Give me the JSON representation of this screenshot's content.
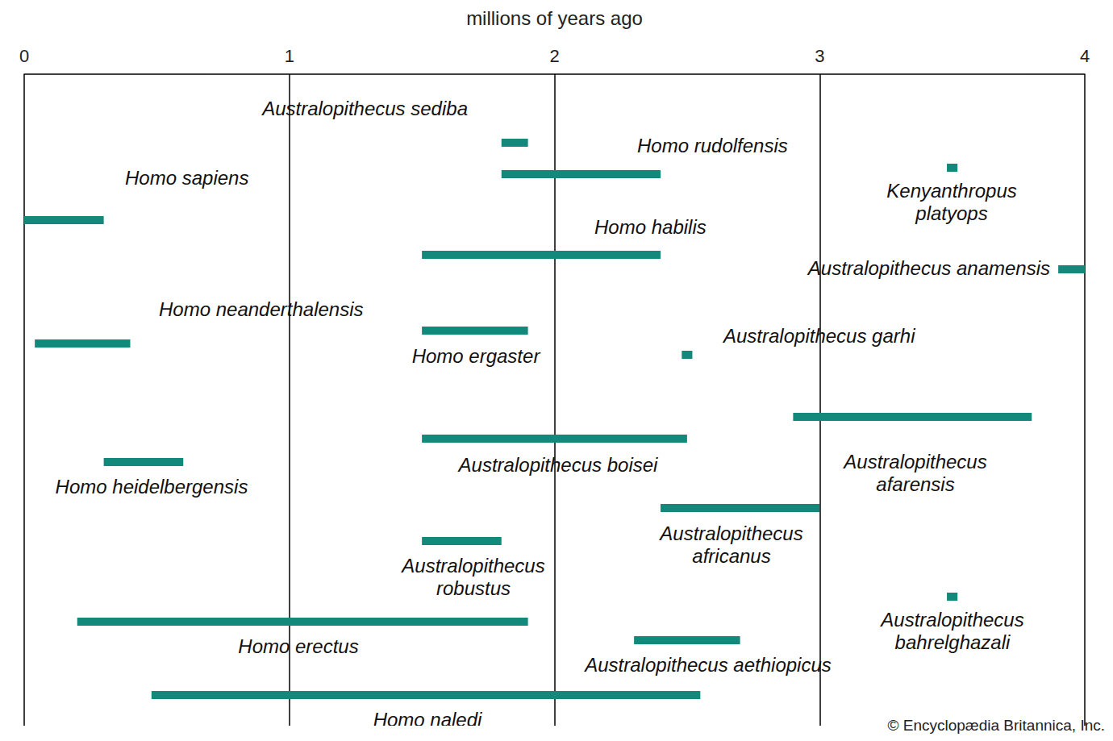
{
  "chart_data": {
    "type": "timeline",
    "x_label": "millions of years ago",
    "xlim": [
      0,
      4
    ],
    "xticks": [
      0,
      1,
      2,
      3,
      4
    ],
    "grid": true,
    "color": "#13897b",
    "series": [
      {
        "name": "Australopithecus sediba",
        "values": [
          1.8,
          1.9
        ]
      },
      {
        "name": "Homo rudolfensis",
        "values": [
          1.8,
          2.4
        ]
      },
      {
        "name": "Kenyanthropus platyops",
        "values": [
          3.48,
          3.52
        ]
      },
      {
        "name": "Homo sapiens",
        "values": [
          0,
          0.3
        ]
      },
      {
        "name": "Homo habilis",
        "values": [
          1.5,
          2.4
        ]
      },
      {
        "name": "Australopithecus anamensis",
        "values": [
          3.9,
          4.0
        ]
      },
      {
        "name": "Homo neanderthalensis",
        "values": [
          0.04,
          0.4
        ]
      },
      {
        "name": "Homo ergaster",
        "values": [
          1.5,
          1.9
        ]
      },
      {
        "name": "Australopithecus garhi",
        "values": [
          2.48,
          2.52
        ]
      },
      {
        "name": "Homo heidelbergensis",
        "values": [
          0.3,
          0.6
        ]
      },
      {
        "name": "Australopithecus boisei",
        "values": [
          1.5,
          2.5
        ]
      },
      {
        "name": "Australopithecus afarensis",
        "values": [
          2.9,
          3.8
        ]
      },
      {
        "name": "Australopithecus robustus",
        "values": [
          1.5,
          1.8
        ]
      },
      {
        "name": "Australopithecus africanus",
        "values": [
          2.4,
          3.0
        ]
      },
      {
        "name": "Australopithecus bahrelghazali",
        "values": [
          3.48,
          3.52
        ]
      },
      {
        "name": "Homo erectus",
        "values": [
          0.2,
          1.9
        ]
      },
      {
        "name": "Australopithecus aethiopicus",
        "values": [
          2.3,
          2.7
        ]
      },
      {
        "name": "Homo naledi",
        "values": [
          0.48,
          2.55
        ]
      }
    ],
    "annotations": [
      "© Encyclopædia Britannica, Inc."
    ]
  }
}
